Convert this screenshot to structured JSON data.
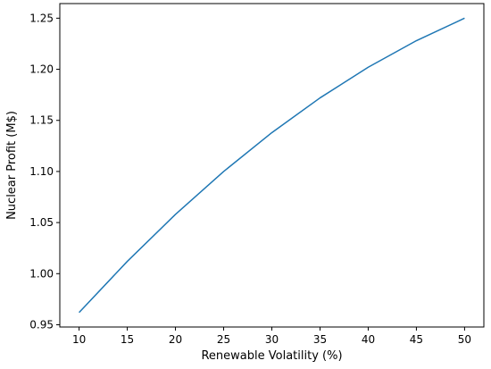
{
  "chart_data": {
    "type": "line",
    "xlabel": "Renewable Volatility (%)",
    "ylabel": "Nuclear Profit (M$)",
    "x": [
      10,
      15,
      20,
      25,
      30,
      35,
      40,
      45,
      50
    ],
    "series": [
      {
        "values": [
          0.962,
          1.012,
          1.058,
          1.1,
          1.138,
          1.172,
          1.202,
          1.228,
          1.25
        ],
        "color": "#1f77b4"
      }
    ],
    "xticks": [
      10,
      15,
      20,
      25,
      30,
      35,
      40,
      45,
      50
    ],
    "xtick_labels": [
      "10",
      "15",
      "20",
      "25",
      "30",
      "35",
      "40",
      "45",
      "50"
    ],
    "yticks": [
      0.95,
      1.0,
      1.05,
      1.1,
      1.15,
      1.2,
      1.25
    ],
    "ytick_labels": [
      "0.95",
      "1.00",
      "1.05",
      "1.10",
      "1.15",
      "1.20",
      "1.25"
    ],
    "xlim": [
      8,
      52
    ],
    "ylim": [
      0.9478,
      1.2643
    ],
    "grid": false,
    "legend": false
  }
}
